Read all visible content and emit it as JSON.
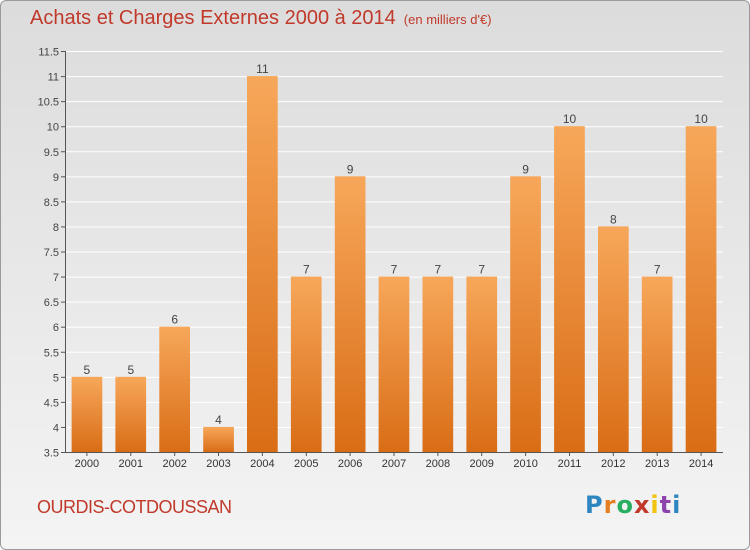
{
  "chart_data": {
    "type": "bar",
    "title": "Achats et Charges Externes 2000 à 2014",
    "subtitle": "(en milliers d'€)",
    "categories": [
      "2000",
      "2001",
      "2002",
      "2003",
      "2004",
      "2005",
      "2006",
      "2007",
      "2008",
      "2009",
      "2010",
      "2011",
      "2012",
      "2013",
      "2014"
    ],
    "values": [
      5,
      5,
      6,
      4,
      11,
      7,
      9,
      7,
      7,
      7,
      9,
      10,
      8,
      7,
      10
    ],
    "data_labels": [
      "5",
      "5",
      "6",
      "4",
      "11",
      "7",
      "9",
      "7",
      "7",
      "7",
      "9",
      "10",
      "8",
      "7",
      "10"
    ],
    "ylim": [
      3.5,
      11.5
    ],
    "yticks": [
      3.5,
      4,
      4.5,
      5,
      5.5,
      6,
      6.5,
      7,
      7.5,
      8,
      8.5,
      9,
      9.5,
      10,
      10.5,
      11,
      11.5
    ],
    "ytick_labels": [
      "3.5",
      "4",
      "4.5",
      "5",
      "5.5",
      "6",
      "6.5",
      "7",
      "7.5",
      "8",
      "8.5",
      "9",
      "9.5",
      "10",
      "10.5",
      "11",
      "11.5"
    ],
    "xlabel": "",
    "ylabel": "",
    "grid": true,
    "bar_color_top": "#f7a75a",
    "bar_color_bottom": "#d96d16"
  },
  "commune": "OURDIS-COTDOUSSAN",
  "logo": {
    "letters": [
      "P",
      "r",
      "o",
      "x",
      "i",
      "t",
      "i"
    ]
  }
}
